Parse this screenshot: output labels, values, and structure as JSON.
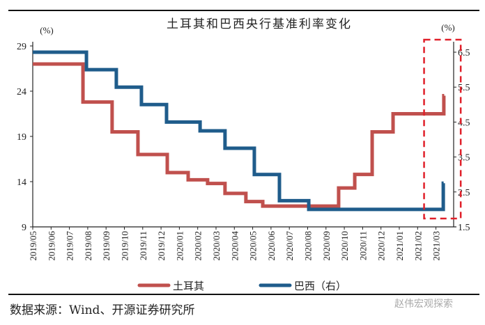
{
  "chart_data": {
    "type": "line",
    "subtype": "step",
    "title": "土耳其和巴西央行基准利率变化",
    "left_unit": "(%)",
    "right_unit": "(%)",
    "left_ylim": [
      9,
      29
    ],
    "left_ticks": [
      "9",
      "14",
      "19",
      "24",
      "29"
    ],
    "right_ylim": [
      1.5,
      6.5
    ],
    "right_ticks": [
      "1.5",
      "2.5",
      "3.5",
      "4.5",
      "5.5",
      "6.5"
    ],
    "x_ticks": [
      "2019/05",
      "2019/06",
      "2019/07",
      "2019/08",
      "2019/09",
      "2019/10",
      "2019/11",
      "2019/12",
      "2020/01",
      "2020/02",
      "2020/03",
      "2020/04",
      "2020/05",
      "2020/06",
      "2020/07",
      "2020/08",
      "2020/09",
      "2020/10",
      "2020/11",
      "2020/12",
      "2021/01",
      "2021/02",
      "2021/03"
    ],
    "xlim": [
      0,
      23
    ],
    "series": [
      {
        "name": "土耳其",
        "axis": "left",
        "color": "#c0504d",
        "steps": [
          [
            0,
            27.0
          ],
          [
            2.74,
            22.8
          ],
          [
            4.33,
            19.5
          ],
          [
            5.74,
            17.0
          ],
          [
            7.34,
            15.0
          ],
          [
            8.48,
            14.2
          ],
          [
            9.54,
            13.8
          ],
          [
            10.49,
            12.7
          ],
          [
            11.63,
            11.8
          ],
          [
            12.55,
            11.3
          ],
          [
            16.69,
            13.3
          ],
          [
            17.57,
            14.8
          ],
          [
            18.52,
            19.5
          ],
          [
            19.66,
            21.5
          ],
          [
            22.43,
            23.5
          ]
        ],
        "end": 22.45
      },
      {
        "name": "巴西（右）",
        "axis": "right",
        "color": "#1f5c8b",
        "steps": [
          [
            0,
            6.5
          ],
          [
            2.93,
            6.0
          ],
          [
            4.56,
            5.5
          ],
          [
            5.93,
            5.0
          ],
          [
            7.3,
            4.5
          ],
          [
            9.13,
            4.25
          ],
          [
            10.49,
            3.75
          ],
          [
            12.09,
            3.0
          ],
          [
            13.46,
            2.25
          ],
          [
            15.06,
            2.0
          ],
          [
            22.4,
            2.75
          ]
        ],
        "end": 22.42
      }
    ],
    "highlight_box": {
      "x_range": [
        21.2,
        23.2
      ],
      "color": "#e0202a",
      "style": "dashed"
    },
    "legend": "bottom-center"
  },
  "footer": {
    "source": "数据来源：Wind、开源证券研究所",
    "watermark": "赵伟宏观探索"
  }
}
